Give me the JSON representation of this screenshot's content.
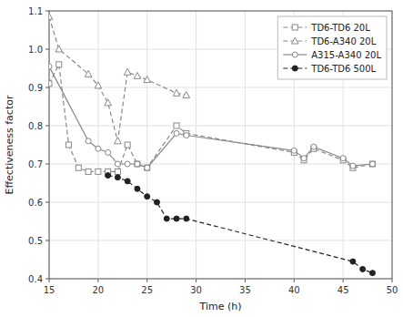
{
  "chart_data": {
    "type": "line",
    "title": "",
    "xlabel": "Time (h)",
    "ylabel": "Effectiveness factor",
    "xlim": [
      15,
      50
    ],
    "ylim": [
      0.4,
      1.1
    ],
    "xticks": [
      15,
      20,
      25,
      30,
      35,
      40,
      45,
      50
    ],
    "yticks": [
      0.4,
      0.5,
      0.6,
      0.7,
      0.8,
      0.9,
      {
        "value": 1.0,
        "label": "1.0"
      },
      1.1
    ],
    "grid": true,
    "legend": "upper-right",
    "series": [
      {
        "name": "TD6-TD6 20L",
        "color": "#888888",
        "line_style": "dashed",
        "marker": "square-open",
        "x": [
          15,
          16,
          17,
          18,
          19,
          20,
          21,
          22,
          23,
          24,
          25,
          28,
          29,
          40,
          41,
          42,
          45,
          46,
          48
        ],
        "values": [
          0.91,
          0.96,
          0.75,
          0.69,
          0.68,
          0.68,
          0.68,
          0.68,
          0.75,
          0.7,
          0.69,
          0.8,
          0.78,
          0.73,
          0.71,
          0.74,
          0.71,
          0.69,
          0.7
        ]
      },
      {
        "name": "TD6-A340 20L",
        "color": "#888888",
        "line_style": "dashed",
        "marker": "triangle-open",
        "x": [
          15,
          16,
          19,
          20,
          21,
          22,
          23,
          24,
          25,
          28,
          29
        ],
        "values": [
          1.085,
          1.0,
          0.935,
          0.905,
          0.86,
          0.76,
          0.94,
          0.93,
          0.92,
          0.885,
          0.88
        ]
      },
      {
        "name": "A315-A340 20L",
        "color": "#888888",
        "line_style": "solid",
        "marker": "circle-open",
        "x": [
          15,
          19,
          20,
          21,
          22,
          23,
          24,
          25,
          28,
          29,
          40,
          41,
          42,
          45,
          46,
          48
        ],
        "values": [
          0.955,
          0.76,
          0.74,
          0.73,
          0.7,
          0.7,
          0.7,
          0.69,
          0.78,
          0.775,
          0.735,
          0.715,
          0.745,
          0.715,
          0.695,
          0.7
        ]
      },
      {
        "name": "TD6-TD6 500L",
        "color": "#222222",
        "line_style": "dashed",
        "marker": "circle",
        "x": [
          21,
          22,
          23,
          24,
          25,
          26,
          27,
          28,
          29,
          46,
          47,
          48
        ],
        "values": [
          0.67,
          0.665,
          0.655,
          0.635,
          0.615,
          0.6,
          0.557,
          0.557,
          0.557,
          0.445,
          0.425,
          0.415
        ]
      }
    ]
  }
}
